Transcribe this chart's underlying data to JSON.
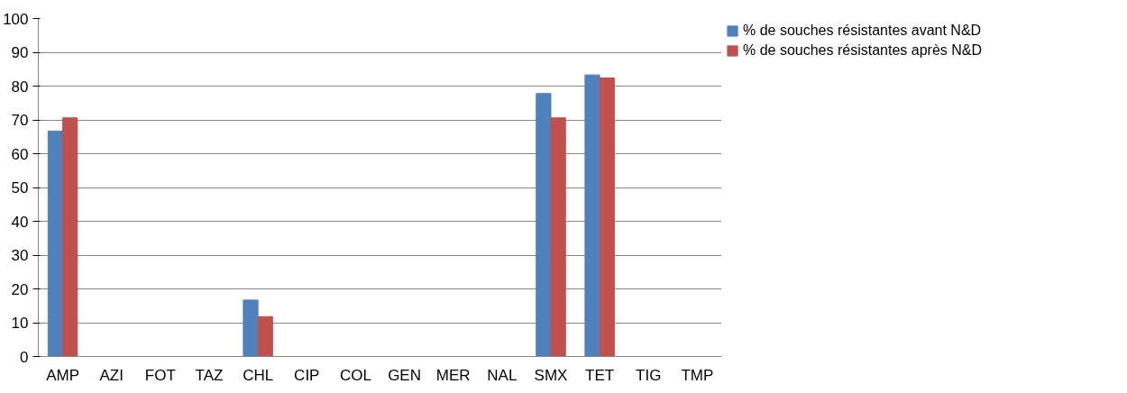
{
  "chart_data": {
    "type": "bar",
    "categories": [
      "AMP",
      "AZI",
      "FOT",
      "TAZ",
      "CHL",
      "CIP",
      "COL",
      "GEN",
      "MER",
      "NAL",
      "SMX",
      "TET",
      "TIG",
      "TMP"
    ],
    "series": [
      {
        "name": "% de souches résistantes avant N&D",
        "color": "#4f81bd",
        "values": [
          66.7,
          0,
          0,
          0,
          16.7,
          0,
          0,
          0,
          0,
          0,
          77.8,
          83.3,
          0,
          0
        ]
      },
      {
        "name": "% de souches résistantes après N&D",
        "color": "#c0504d",
        "values": [
          70.6,
          0,
          0,
          0,
          11.8,
          0,
          0,
          0,
          0,
          0,
          70.6,
          82.4,
          0,
          0
        ]
      }
    ],
    "ylim": [
      0,
      100
    ],
    "yticks": [
      0,
      10,
      20,
      30,
      40,
      50,
      60,
      70,
      80,
      90,
      100
    ],
    "grid": "y",
    "legend": "right"
  }
}
